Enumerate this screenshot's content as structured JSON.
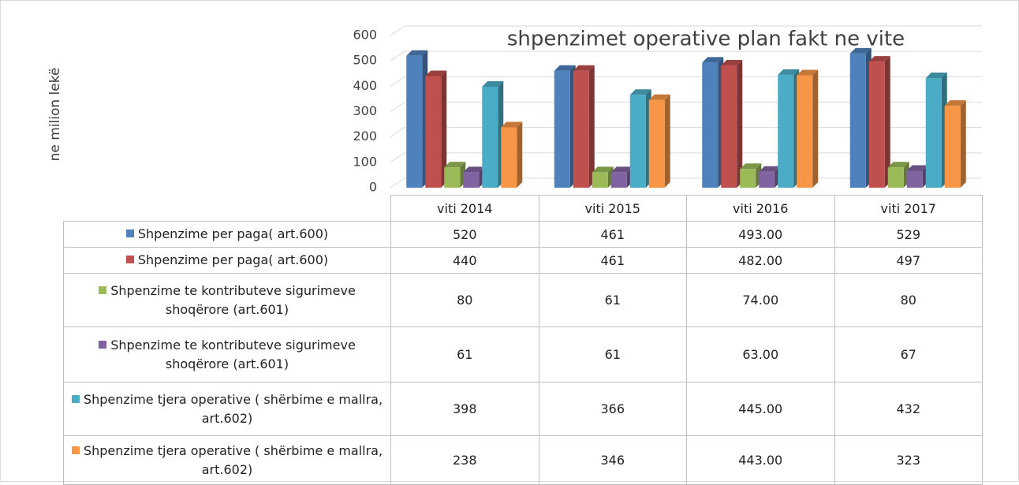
{
  "chart_data": {
    "type": "bar3d",
    "title": "shpenzimet operative plan fakt ne vite",
    "y_axis_label": "ne milion lekë",
    "categories": [
      "viti 2014",
      "viti 2015",
      "viti 2016",
      "viti 2017"
    ],
    "ylim": [
      0,
      600
    ],
    "yticks": [
      0,
      100,
      200,
      300,
      400,
      500,
      600
    ],
    "grid": true,
    "series": [
      {
        "name": "Shpenzime per paga( art.600)",
        "color": "#4f81bd",
        "values": [
          520,
          461,
          493,
          529
        ],
        "value_labels": [
          "520",
          "461",
          "493.00",
          "529"
        ]
      },
      {
        "name": "Shpenzime per paga( art.600)",
        "color": "#c0504d",
        "values": [
          440,
          461,
          482,
          497
        ],
        "value_labels": [
          "440",
          "461",
          "482.00",
          "497"
        ]
      },
      {
        "name": "Shpenzime te kontributeve sigurimeve shoqërore (art.601)",
        "color": "#9bbb59",
        "values": [
          80,
          61,
          74,
          80
        ],
        "value_labels": [
          "80",
          "61",
          "74.00",
          "80"
        ]
      },
      {
        "name": "Shpenzime te kontributeve sigurimeve shoqërore (art.601)",
        "color": "#8064a2",
        "values": [
          61,
          61,
          63,
          67
        ],
        "value_labels": [
          "61",
          "61",
          "63.00",
          "67"
        ]
      },
      {
        "name": "Shpenzime tjera operative ( shërbime e mallra, art.602)",
        "color": "#4bacc6",
        "values": [
          398,
          366,
          445,
          432
        ],
        "value_labels": [
          "398",
          "366",
          "445.00",
          "432"
        ]
      },
      {
        "name": "Shpenzime tjera operative ( shërbime e mallra, art.602)",
        "color": "#f79646",
        "values": [
          238,
          346,
          443,
          323
        ],
        "value_labels": [
          "238",
          "346",
          "443.00",
          "323"
        ]
      }
    ]
  }
}
